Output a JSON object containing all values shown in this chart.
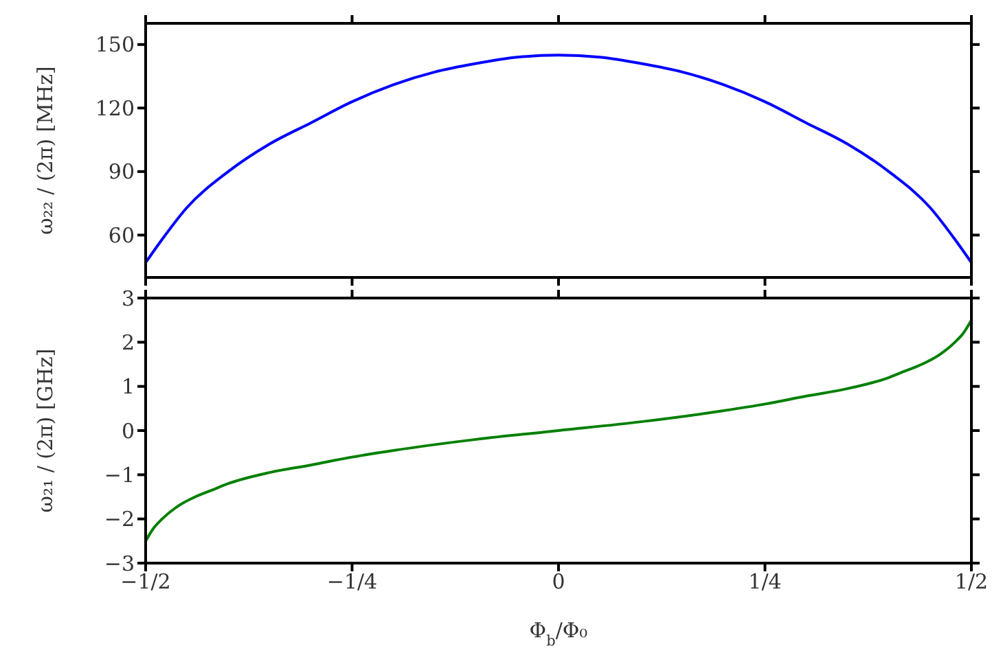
{
  "chart_data": [
    {
      "type": "line",
      "ylabel": "ω₂₂ / (2π)  [MHz]",
      "x": [
        -0.5,
        -0.48,
        -0.45,
        -0.4,
        -0.35,
        -0.3,
        -0.25,
        -0.2,
        -0.15,
        -0.1,
        -0.05,
        0,
        0.05,
        0.1,
        0.15,
        0.2,
        0.25,
        0.3,
        0.35,
        0.4,
        0.45,
        0.48,
        0.5
      ],
      "series": [
        {
          "color": "#0000ff",
          "values": [
            47,
            58,
            73,
            90,
            103,
            113,
            123,
            131,
            137,
            141,
            144,
            145,
            144,
            141,
            137,
            131,
            123,
            113,
            103,
            90,
            73,
            58,
            47
          ]
        }
      ],
      "xlim": [
        -0.5,
        0.5
      ],
      "xticks": [
        {
          "value": -0.5,
          "label": null
        },
        {
          "value": -0.25,
          "label": null
        },
        {
          "value": 0,
          "label": null
        },
        {
          "value": 0.25,
          "label": null
        },
        {
          "value": 0.5,
          "label": null
        }
      ],
      "ylim": [
        40,
        160
      ],
      "yticks": [
        60,
        90,
        120,
        150
      ],
      "tick_labels": "y",
      "grid": false,
      "legend": false,
      "marker": "none",
      "line_style": "solid"
    },
    {
      "type": "line",
      "ylabel": "ω₂₁ / (2π)  [GHz]",
      "xlabel": "Φ$_{b}$/Φ₀",
      "x": [
        -0.5,
        -0.49,
        -0.48,
        -0.46,
        -0.44,
        -0.42,
        -0.4,
        -0.35,
        -0.3,
        -0.25,
        -0.2,
        -0.1,
        0,
        0.1,
        0.2,
        0.25,
        0.3,
        0.35,
        0.4,
        0.42,
        0.44,
        0.46,
        0.48,
        0.49,
        0.5
      ],
      "series": [
        {
          "color": "#008000",
          "values": [
            -2.5,
            -2.2,
            -2.0,
            -1.7,
            -1.5,
            -1.35,
            -1.2,
            -0.95,
            -0.78,
            -0.6,
            -0.45,
            -0.2,
            0,
            0.2,
            0.45,
            0.6,
            0.78,
            0.95,
            1.2,
            1.35,
            1.5,
            1.7,
            2.0,
            2.2,
            2.5
          ]
        }
      ],
      "xlim": [
        -0.5,
        0.5
      ],
      "xticks": [
        {
          "value": -0.5,
          "label": "−1/2"
        },
        {
          "value": -0.25,
          "label": "−1/4"
        },
        0,
        {
          "value": 0.25,
          "label": "1/4"
        },
        {
          "value": 0.5,
          "label": "1/2"
        }
      ],
      "ylim": [
        -3,
        3
      ],
      "yticks": [
        -3,
        -2,
        -1,
        0,
        1,
        2,
        3
      ],
      "grid": false,
      "legend": false,
      "marker": "none",
      "line_style": "solid"
    }
  ]
}
